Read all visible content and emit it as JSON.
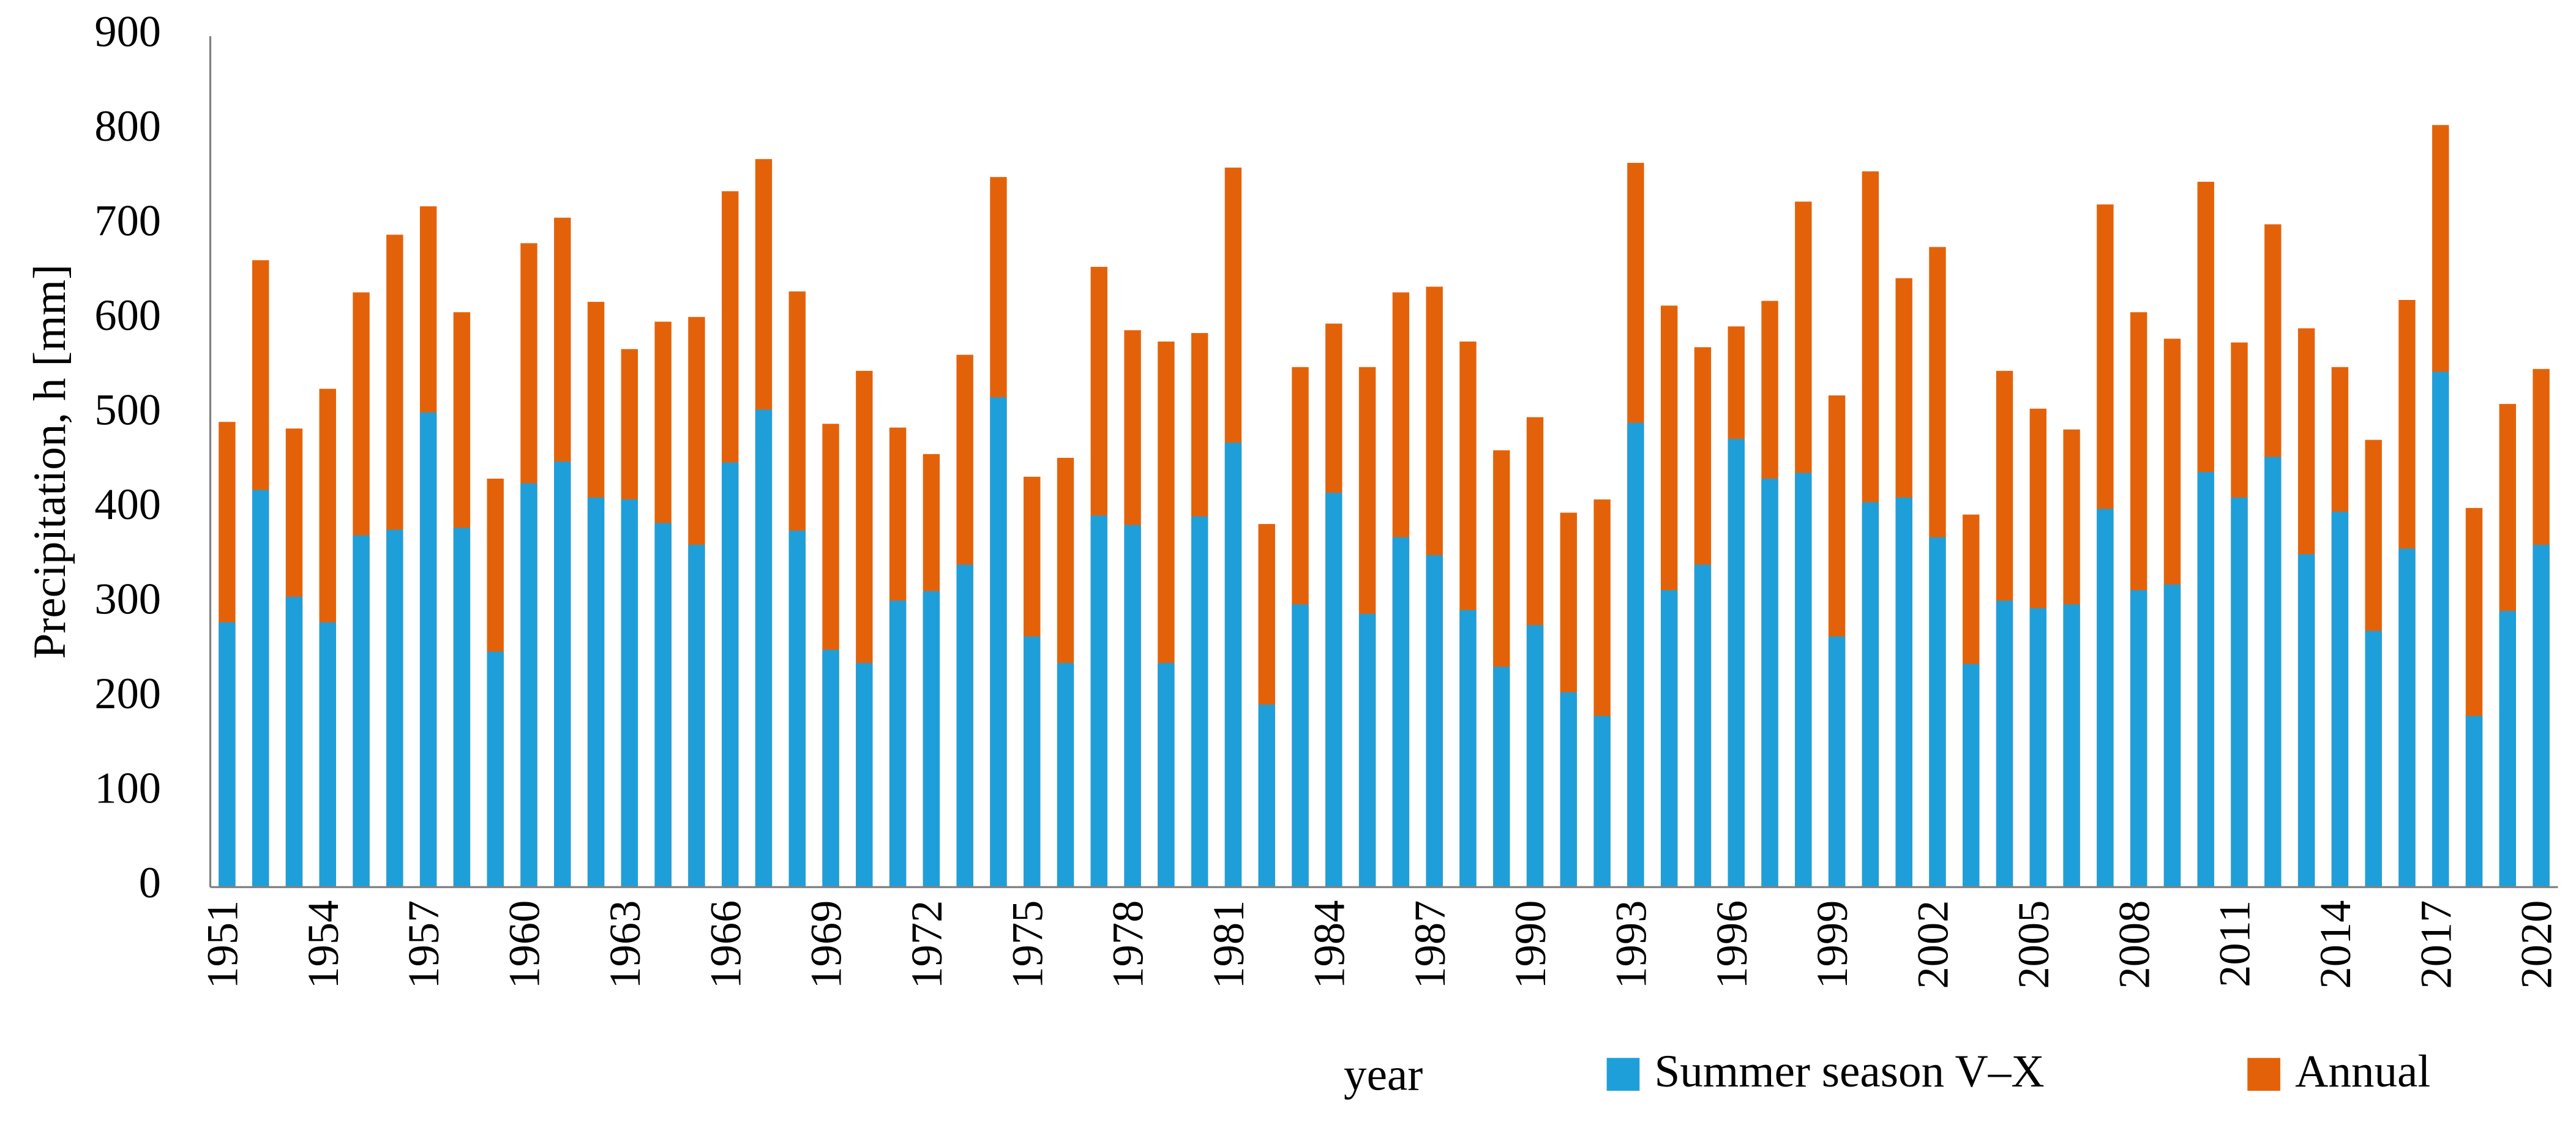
{
  "chart_data": {
    "type": "bar",
    "y_label": "Precipitation, h [mm]",
    "x_label": "year",
    "categories": [
      "1951",
      null,
      null,
      "1954",
      null,
      null,
      "1957",
      null,
      null,
      "1960",
      null,
      null,
      "1963",
      null,
      null,
      "1966",
      null,
      null,
      "1969",
      null,
      null,
      "1972",
      null,
      null,
      "1975",
      null,
      null,
      "1978",
      null,
      null,
      "1981",
      null,
      null,
      "1984",
      null,
      null,
      "1987",
      null,
      null,
      "1990",
      null,
      null,
      "1993",
      null,
      null,
      "1996",
      null,
      null,
      "1999",
      null,
      null,
      "2002",
      null,
      null,
      "2005",
      null,
      null,
      "2008",
      null,
      null,
      "2011",
      null,
      null,
      "2014",
      null,
      null,
      "2017",
      null,
      null,
      "2020"
    ],
    "series": [
      {
        "name": "Annual",
        "color": "#e36209",
        "values": [
          492,
          663,
          485,
          527,
          629,
          690,
          720,
          608,
          432,
          681,
          708,
          619,
          569,
          598,
          603,
          736,
          770,
          630,
          490,
          546,
          486,
          458,
          563,
          751,
          434,
          454,
          656,
          589,
          577,
          586,
          761,
          384,
          550,
          596,
          550,
          629,
          635,
          577,
          462,
          497,
          396,
          410,
          766,
          615,
          571,
          593,
          620,
          725,
          520,
          757,
          644,
          677,
          394,
          546,
          506,
          484,
          722,
          608,
          580,
          746,
          576,
          701,
          591,
          550,
          473,
          621,
          806,
          401,
          511,
          548
        ]
      },
      {
        "name": "Summer season V–X",
        "color": "#1f9fd9",
        "values": [
          280,
          420,
          307,
          280,
          372,
          378,
          502,
          380,
          249,
          427,
          450,
          412,
          410,
          385,
          362,
          449,
          505,
          377,
          251,
          237,
          303,
          313,
          341,
          518,
          265,
          237,
          393,
          383,
          237,
          392,
          470,
          193,
          299,
          417,
          289,
          370,
          351,
          293,
          233,
          277,
          206,
          181,
          491,
          314,
          341,
          474,
          432,
          438,
          265,
          407,
          412,
          370,
          236,
          303,
          295,
          299,
          400,
          314,
          320,
          439,
          412,
          455,
          352,
          397,
          271,
          358,
          545,
          181,
          292,
          362
        ]
      }
    ],
    "legend_order": [
      1,
      0
    ],
    "legend": "bottom-right",
    "ylim": [
      0,
      900
    ],
    "yticks": [
      0,
      100,
      200,
      300,
      400,
      500,
      600,
      700,
      800,
      900
    ],
    "grid": false
  }
}
